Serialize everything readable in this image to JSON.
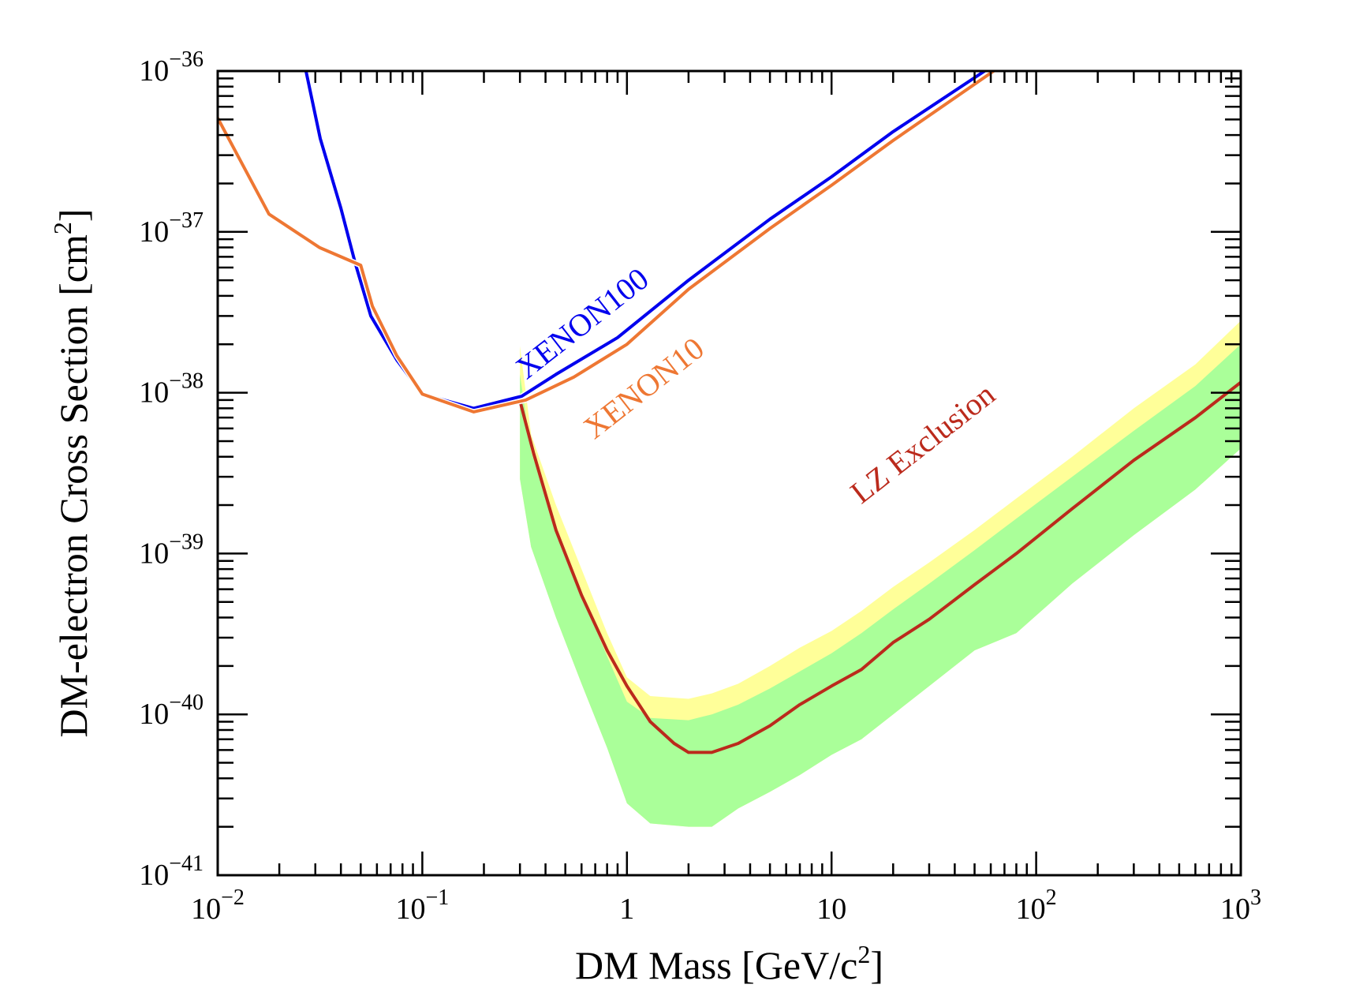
{
  "chart_data": {
    "type": "line",
    "title": "",
    "xlabel": "DM Mass [GeV/c2]",
    "xlabel_parts": {
      "main": "DM Mass [GeV/c",
      "sup": "2",
      "tail": "]"
    },
    "ylabel": "DM-electron Cross Section [cm2]",
    "ylabel_parts": {
      "main": "DM-electron Cross Section [cm",
      "sup": "2",
      "tail": "]"
    },
    "xscale": "log",
    "yscale": "log",
    "xlim": [
      0.01,
      1000
    ],
    "ylim": [
      1e-41,
      1e-36
    ],
    "grid": false,
    "legend": "none (inline curve labels)",
    "x_ticks": [
      {
        "value": 0.01,
        "base": "10",
        "exp": "−2"
      },
      {
        "value": 0.1,
        "base": "10",
        "exp": "−1"
      },
      {
        "value": 1,
        "base": "1",
        "exp": ""
      },
      {
        "value": 10,
        "base": "10",
        "exp": ""
      },
      {
        "value": 100,
        "base": "10",
        "exp": "2"
      },
      {
        "value": 1000,
        "base": "10",
        "exp": "3"
      }
    ],
    "y_ticks": [
      {
        "value": 1e-36,
        "base": "10",
        "exp": "−36"
      },
      {
        "value": 1e-37,
        "base": "10",
        "exp": "−37"
      },
      {
        "value": 1e-38,
        "base": "10",
        "exp": "−38"
      },
      {
        "value": 1e-39,
        "base": "10",
        "exp": "−39"
      },
      {
        "value": 1e-40,
        "base": "10",
        "exp": "−40"
      },
      {
        "value": 1e-41,
        "base": "10",
        "exp": "−41"
      }
    ],
    "series": [
      {
        "name": "XENON100",
        "label": "XENON100",
        "color": "#0000ee",
        "x": [
          0.027,
          0.0317,
          0.04,
          0.047,
          0.056,
          0.075,
          0.1,
          0.178,
          0.306,
          0.45,
          0.9,
          2,
          5,
          10,
          20,
          56
        ],
        "y": [
          1e-36,
          3.8e-37,
          1.4e-37,
          6.4e-38,
          3e-38,
          1.6e-38,
          9.8e-39,
          8e-39,
          9.5e-39,
          1.3e-38,
          2.2e-38,
          5e-38,
          1.2e-37,
          2.2e-37,
          4.2e-37,
          1e-36
        ]
      },
      {
        "name": "XENON10",
        "label": "XENON10",
        "color": "#ee7733",
        "x": [
          0.01,
          0.0178,
          0.0314,
          0.05,
          0.057,
          0.075,
          0.1,
          0.178,
          0.32,
          0.55,
          1,
          2,
          5,
          10,
          20,
          62
        ],
        "y": [
          5.1e-37,
          1.29e-37,
          8e-38,
          6.2e-38,
          3.45e-38,
          1.7e-38,
          9.8e-39,
          7.6e-39,
          9e-39,
          1.25e-38,
          2e-38,
          4.4e-38,
          1.05e-37,
          1.95e-37,
          3.7e-37,
          1e-36
        ]
      },
      {
        "name": "LZ Exclusion",
        "label": "LZ Exclusion",
        "color": "#bb2a1c",
        "x": [
          0.3,
          0.35,
          0.45,
          0.6,
          0.8,
          1.0,
          1.3,
          1.7,
          2.0,
          2.6,
          3.5,
          5,
          7,
          10,
          14,
          20,
          30,
          50,
          80,
          150,
          300,
          600,
          1000
        ],
        "y": [
          8.9e-39,
          4.2e-39,
          1.4e-39,
          5.5e-40,
          2.5e-40,
          1.5e-40,
          9e-41,
          6.6e-41,
          5.8e-41,
          5.8e-41,
          6.6e-41,
          8.5e-41,
          1.15e-40,
          1.5e-40,
          1.9e-40,
          2.8e-40,
          3.9e-40,
          6.4e-40,
          1e-39,
          1.9e-39,
          3.8e-39,
          7e-39,
          1.16e-38
        ]
      }
    ],
    "bands": [
      {
        "name": "LZ expected ±2σ",
        "color": "#ffff99",
        "x": [
          0.3,
          0.34,
          0.45,
          0.6,
          0.8,
          1.0,
          1.3,
          2.0,
          2.6,
          3.5,
          5,
          7,
          10,
          14,
          20,
          30,
          50,
          80,
          150,
          300,
          600,
          1000
        ],
        "upper": [
          1.95e-38,
          5.5e-39,
          2e-39,
          8e-40,
          3.2e-40,
          1.7e-40,
          1.3e-40,
          1.25e-40,
          1.35e-40,
          1.55e-40,
          2e-40,
          2.6e-40,
          3.3e-40,
          4.4e-40,
          6.2e-40,
          8.8e-40,
          1.4e-39,
          2.2e-39,
          4e-39,
          8e-39,
          1.5e-38,
          2.8e-38
        ],
        "lower": [
          2.9e-39,
          1.1e-39,
          4e-40,
          1.55e-40,
          6.2e-41,
          2.8e-41,
          2.1e-41,
          2e-41,
          2e-41,
          2.6e-41,
          3.3e-41,
          4.2e-41,
          5.6e-41,
          7e-41,
          1e-40,
          1.5e-40,
          2.5e-40,
          3.2e-40,
          6.5e-40,
          1.3e-39,
          2.5e-39,
          4.5e-39
        ]
      },
      {
        "name": "LZ expected ±1σ",
        "color": "#aaff99",
        "x": [
          0.3,
          0.34,
          0.45,
          0.6,
          0.8,
          1.0,
          1.3,
          2.0,
          2.6,
          3.5,
          5,
          7,
          10,
          14,
          20,
          30,
          50,
          80,
          150,
          300,
          600,
          1000
        ],
        "upper": [
          1.3e-38,
          4.3e-39,
          1.45e-39,
          5.5e-40,
          2.3e-40,
          1.2e-40,
          9.5e-41,
          9.2e-41,
          1e-40,
          1.15e-40,
          1.45e-40,
          1.85e-40,
          2.4e-40,
          3.2e-40,
          4.5e-40,
          6.5e-40,
          1.05e-39,
          1.65e-39,
          3e-39,
          5.8e-39,
          1.1e-38,
          2e-38
        ],
        "lower": [
          2.9e-39,
          1.1e-39,
          4e-40,
          1.55e-40,
          6.2e-41,
          2.8e-41,
          2.1e-41,
          2e-41,
          2e-41,
          2.6e-41,
          3.3e-41,
          4.2e-41,
          5.6e-41,
          7e-41,
          1e-40,
          1.5e-40,
          2.5e-40,
          3.2e-40,
          6.5e-40,
          1.3e-39,
          2.5e-39,
          4.5e-39
        ]
      }
    ],
    "annotations": [
      {
        "text": "XENON100",
        "color": "#0000ee",
        "at_x": 0.65,
        "at_y": 2.4e-38,
        "angle_deg": -38
      },
      {
        "text": "XENON10",
        "color": "#ee7733",
        "at_x": 1.3,
        "at_y": 9.5e-39,
        "angle_deg": -38
      },
      {
        "text": "LZ Exclusion",
        "color": "#bb2a1c",
        "at_x": 30,
        "at_y": 4.3e-39,
        "angle_deg": -38
      }
    ]
  }
}
